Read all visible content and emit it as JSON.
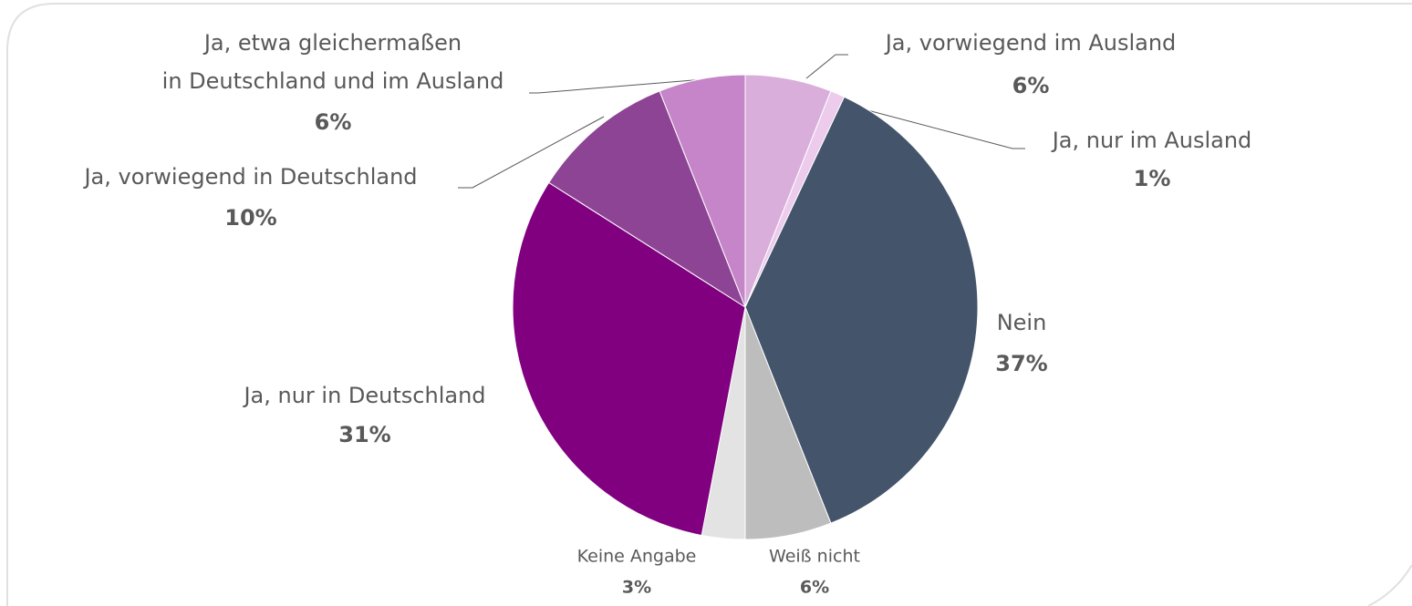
{
  "chart_data": {
    "type": "pie",
    "categories": [
      "Ja, vorwiegend im Ausland",
      "Ja, nur im Ausland",
      "Nein",
      "Weiß nicht",
      "Keine Angabe",
      "Ja, nur in Deutschland",
      "Ja, vorwiegend in Deutschland",
      "Ja, etwa gleichermaßen in Deutschland und im Ausland"
    ],
    "values": [
      6,
      1,
      37,
      6,
      3,
      31,
      10,
      6
    ],
    "value_labels": [
      "6%",
      "1%",
      "37%",
      "6%",
      "3%",
      "31%",
      "10%",
      "6%"
    ],
    "colors": [
      "#d9aedb",
      "#eccbed",
      "#44546a",
      "#bdbdbd",
      "#e3e3e3",
      "#800080",
      "#8e4494",
      "#c585c8"
    ]
  }
}
